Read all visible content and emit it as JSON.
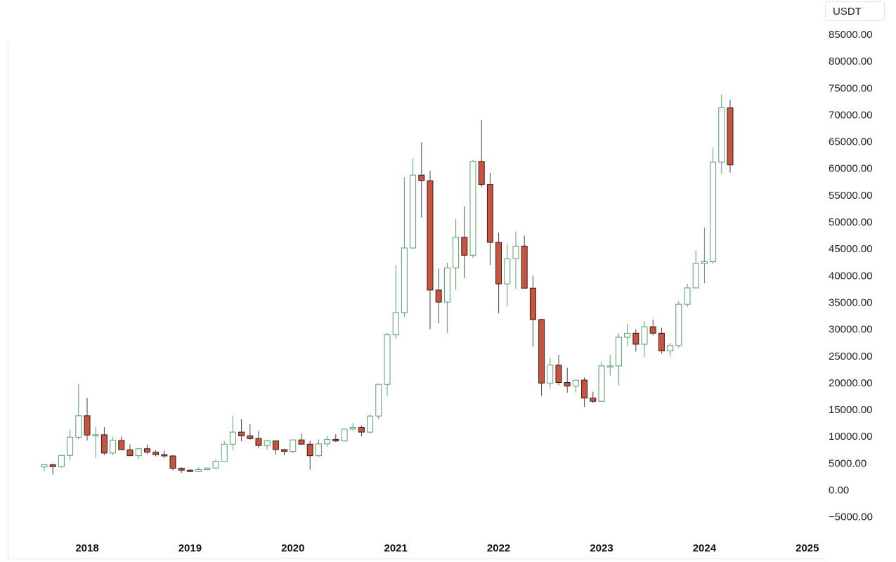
{
  "currency_selector": {
    "label": "USDT"
  },
  "chart_data": {
    "type": "candlestick",
    "interval": "monthly",
    "quote_currency": "USDT",
    "y_range": [
      -5000,
      85000
    ],
    "y_ticks": [
      "85000.00",
      "80000.00",
      "75000.00",
      "70000.00",
      "65000.00",
      "60000.00",
      "55000.00",
      "50000.00",
      "45000.00",
      "40000.00",
      "35000.00",
      "30000.00",
      "25000.00",
      "20000.00",
      "15000.00",
      "10000.00",
      "5000.00",
      "0.00",
      "−5000.00"
    ],
    "x_ticks": [
      "2018",
      "2019",
      "2020",
      "2021",
      "2022",
      "2023",
      "2024",
      "2025"
    ],
    "start_month": "2017-08",
    "up_color": "#ffffff",
    "up_border": "#5a9b6e",
    "down_color": "#c65440",
    "down_border": "#3a1a14",
    "candles": [
      [
        4300,
        4750,
        3500,
        4700
      ],
      [
        4700,
        4950,
        2900,
        4350
      ],
      [
        4350,
        6450,
        4150,
        6450
      ],
      [
        6450,
        11300,
        5550,
        9850
      ],
      [
        9850,
        19800,
        9500,
        13850
      ],
      [
        13850,
        17200,
        9200,
        10250
      ],
      [
        10250,
        11750,
        6000,
        10300
      ],
      [
        10300,
        11700,
        6500,
        6900
      ],
      [
        6900,
        9950,
        6500,
        9250
      ],
      [
        9250,
        10000,
        7450,
        7500
      ],
      [
        7500,
        8500,
        6600,
        6400
      ],
      [
        6400,
        7800,
        5800,
        7700
      ],
      [
        7700,
        8500,
        6650,
        7050
      ],
      [
        7050,
        7400,
        6250,
        6600
      ],
      [
        6600,
        7350,
        5900,
        6350
      ],
      [
        6350,
        6550,
        3650,
        4050
      ],
      [
        4050,
        4300,
        3150,
        3700
      ],
      [
        3700,
        3850,
        3350,
        3450
      ],
      [
        3450,
        4200,
        3400,
        3800
      ],
      [
        3800,
        4150,
        3750,
        4100
      ],
      [
        4100,
        5650,
        4050,
        5350
      ],
      [
        5350,
        9100,
        5300,
        8550
      ],
      [
        8550,
        13900,
        7450,
        10800
      ],
      [
        10800,
        13200,
        9100,
        10100
      ],
      [
        10100,
        12300,
        9350,
        9600
      ],
      [
        9600,
        10950,
        7750,
        8300
      ],
      [
        8300,
        9400,
        7500,
        9150
      ],
      [
        9150,
        9100,
        6550,
        7550
      ],
      [
        7550,
        7700,
        6500,
        7200
      ],
      [
        7200,
        9400,
        6900,
        9350
      ],
      [
        9350,
        10500,
        8450,
        8550
      ],
      [
        8550,
        9200,
        3800,
        6400
      ],
      [
        6400,
        9450,
        6150,
        8600
      ],
      [
        8600,
        10050,
        8100,
        9450
      ],
      [
        9450,
        10400,
        8950,
        9150
      ],
      [
        9150,
        11450,
        9000,
        11350
      ],
      [
        11350,
        12500,
        11100,
        11650
      ],
      [
        11650,
        12050,
        10000,
        10800
      ],
      [
        10800,
        14100,
        10500,
        13800
      ],
      [
        13800,
        19850,
        13200,
        19700
      ],
      [
        19700,
        29300,
        17550,
        28950
      ],
      [
        28950,
        41950,
        28150,
        33100
      ],
      [
        33100,
        58350,
        32300,
        45150
      ],
      [
        45150,
        61800,
        45000,
        58750
      ],
      [
        58750,
        64850,
        50800,
        57700
      ],
      [
        57700,
        59550,
        30000,
        37300
      ],
      [
        37300,
        41300,
        31100,
        35050
      ],
      [
        35050,
        42400,
        29300,
        41450
      ],
      [
        41450,
        50500,
        37350,
        47150
      ],
      [
        47150,
        52900,
        39550,
        43800
      ],
      [
        43800,
        61550,
        43300,
        61300
      ],
      [
        61300,
        69000,
        56500,
        57000
      ],
      [
        57000,
        59200,
        42000,
        46200
      ],
      [
        46200,
        48000,
        33000,
        38450
      ],
      [
        38450,
        45800,
        34300,
        43150
      ],
      [
        43150,
        48200,
        37500,
        45500
      ],
      [
        45500,
        47450,
        37650,
        37650
      ],
      [
        37650,
        40000,
        26700,
        31800
      ],
      [
        31800,
        31950,
        17600,
        19950
      ],
      [
        19950,
        24600,
        18950,
        23300
      ],
      [
        23300,
        25200,
        19550,
        20050
      ],
      [
        20050,
        22800,
        18150,
        19400
      ],
      [
        19400,
        20450,
        18200,
        20500
      ],
      [
        20500,
        21000,
        15500,
        17150
      ],
      [
        17150,
        18350,
        16250,
        16550
      ],
      [
        16550,
        23950,
        16500,
        23150
      ],
      [
        23150,
        25250,
        21350,
        23150
      ],
      [
        23150,
        29200,
        19550,
        28500
      ],
      [
        28500,
        31000,
        26950,
        29250
      ],
      [
        29250,
        30000,
        25800,
        27200
      ],
      [
        27200,
        31400,
        24800,
        30450
      ],
      [
        30450,
        31800,
        28850,
        29250
      ],
      [
        29250,
        30250,
        25400,
        25950
      ],
      [
        25950,
        27450,
        24900,
        26950
      ],
      [
        26950,
        35200,
        26550,
        34650
      ],
      [
        34650,
        38450,
        34150,
        37700
      ],
      [
        37700,
        44700,
        37600,
        42250
      ],
      [
        42250,
        48950,
        38550,
        42600
      ],
      [
        42600,
        63900,
        42250,
        61150
      ],
      [
        61150,
        73800,
        59000,
        71300
      ],
      [
        71300,
        72800,
        59200,
        60650
      ]
    ]
  }
}
